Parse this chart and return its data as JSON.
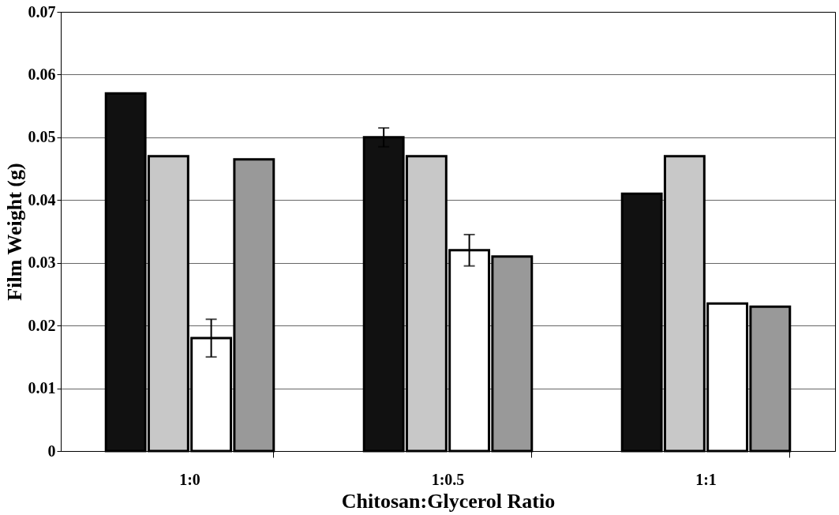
{
  "chart_data": {
    "type": "bar",
    "xlabel": "Chitosan:Glycerol Ratio",
    "ylabel": "Film Weight (g)",
    "categories": [
      "1:0",
      "1:0.5",
      "1:1"
    ],
    "series": [
      {
        "color": "#111111",
        "values": [
          0.057,
          0.05,
          0.041
        ],
        "errors": [
          null,
          0.0015,
          null
        ]
      },
      {
        "color": "#c8c8c8",
        "values": [
          0.047,
          0.047,
          0.047
        ],
        "errors": [
          null,
          null,
          null
        ]
      },
      {
        "color": "#ffffff",
        "values": [
          0.018,
          0.032,
          0.0235
        ],
        "errors": [
          0.003,
          0.0025,
          null
        ]
      },
      {
        "color": "#999999",
        "values": [
          0.0465,
          0.031,
          0.023
        ],
        "errors": [
          null,
          null,
          null
        ]
      }
    ],
    "ylim": [
      0,
      0.07
    ],
    "yticks": [
      0,
      0.01,
      0.02,
      0.03,
      0.04,
      0.05,
      0.06,
      0.07
    ],
    "grid": "y",
    "legend": false
  }
}
